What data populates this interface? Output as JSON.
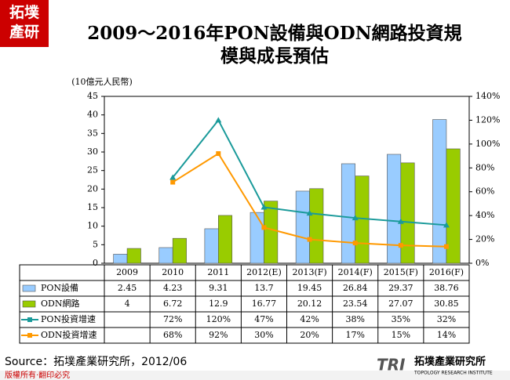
{
  "chart_data": {
    "type": "bar-line",
    "title_lines": [
      "2009～2016年PON設備與ODN網路投資規",
      "模與成長預估"
    ],
    "y_label": "(10億元人民幣)",
    "categories": [
      "2009",
      "2010",
      "2011",
      "2012(E)",
      "2013(F)",
      "2014(F)",
      "2015(F)",
      "2016(F)"
    ],
    "series": [
      {
        "name": "PON設備",
        "type": "bar",
        "color": "#99ccff",
        "values": [
          2.45,
          4.23,
          9.31,
          13.7,
          19.45,
          26.84,
          29.37,
          38.76
        ]
      },
      {
        "name": "ODN網路",
        "type": "bar",
        "color": "#99cc00",
        "values": [
          4,
          6.72,
          12.9,
          16.77,
          20.12,
          23.54,
          27.07,
          30.85
        ]
      },
      {
        "name": "PON投資增速",
        "type": "line",
        "axis": "y2",
        "color": "#1a9a9a",
        "values": [
          null,
          72,
          120,
          47,
          42,
          38,
          35,
          32
        ],
        "value_labels": [
          null,
          "72%",
          "120%",
          "47%",
          "42%",
          "38%",
          "35%",
          "32%"
        ]
      },
      {
        "name": "ODN投資增速",
        "type": "line",
        "axis": "y2",
        "color": "#ff9900",
        "values": [
          null,
          68,
          92,
          30,
          20,
          17,
          15,
          14
        ],
        "value_labels": [
          null,
          "68%",
          "92%",
          "30%",
          "20%",
          "17%",
          "15%",
          "14%"
        ]
      }
    ],
    "ylim": [
      0,
      45
    ],
    "yticks": [
      0,
      5,
      10,
      15,
      20,
      25,
      30,
      35,
      40,
      45
    ],
    "y2lim": [
      0,
      140
    ],
    "y2ticks": [
      {
        "value": 0,
        "label": "0%"
      },
      {
        "value": 20,
        "label": "20%"
      },
      {
        "value": 40,
        "label": "40%"
      },
      {
        "value": 60,
        "label": "60%"
      },
      {
        "value": 80,
        "label": "80%"
      },
      {
        "value": 100,
        "label": "100%"
      },
      {
        "value": 120,
        "label": "120%"
      },
      {
        "value": 140,
        "label": "140%"
      }
    ],
    "source": "Source：拓墣產業研究所，2012/06",
    "footer": "版權所有‧翻印必究",
    "logo_top": [
      "拓墣",
      "產研"
    ],
    "logo_bottom": {
      "mark": "TRI",
      "name": "拓墣產業研究所",
      "english": "TOPOLOGY RESEARCH INSTITUTE"
    }
  }
}
